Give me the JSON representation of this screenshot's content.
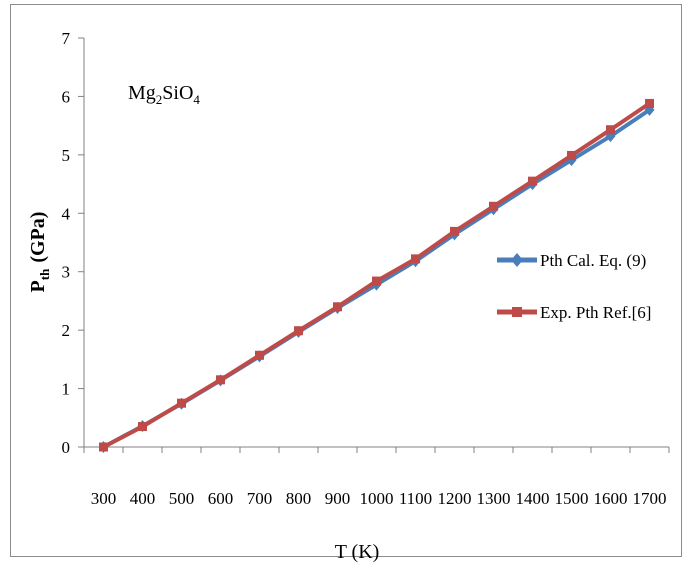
{
  "chart_data": {
    "type": "line",
    "annotation": {
      "base": "Mg",
      "sub1": "2",
      "mid": "SiO",
      "sub2": "4"
    },
    "xlabel": "T (K)",
    "ylabel": {
      "base": "P",
      "sub": "th",
      "rest": "(GPa)"
    },
    "ylim": [
      0,
      7
    ],
    "yticks": [
      0,
      1,
      2,
      3,
      4,
      5,
      6,
      7
    ],
    "x": [
      300,
      400,
      500,
      600,
      700,
      800,
      900,
      1000,
      1100,
      1200,
      1300,
      1400,
      1500,
      1600,
      1700
    ],
    "series": [
      {
        "name": "Pth Cal. Eq. (9)",
        "color": "#4a7ebb",
        "marker": "diamond",
        "values": [
          0.0,
          0.36,
          0.74,
          1.14,
          1.55,
          1.97,
          2.38,
          2.78,
          3.18,
          3.64,
          4.07,
          4.5,
          4.91,
          5.32,
          5.77
        ]
      },
      {
        "name": "Exp. Pth Ref.[6]",
        "color": "#be4b48",
        "marker": "square",
        "values": [
          0.0,
          0.35,
          0.75,
          1.15,
          1.57,
          1.99,
          2.4,
          2.84,
          3.22,
          3.69,
          4.12,
          4.55,
          4.99,
          5.43,
          5.88
        ]
      }
    ],
    "grid": false,
    "legend_position": "right"
  }
}
